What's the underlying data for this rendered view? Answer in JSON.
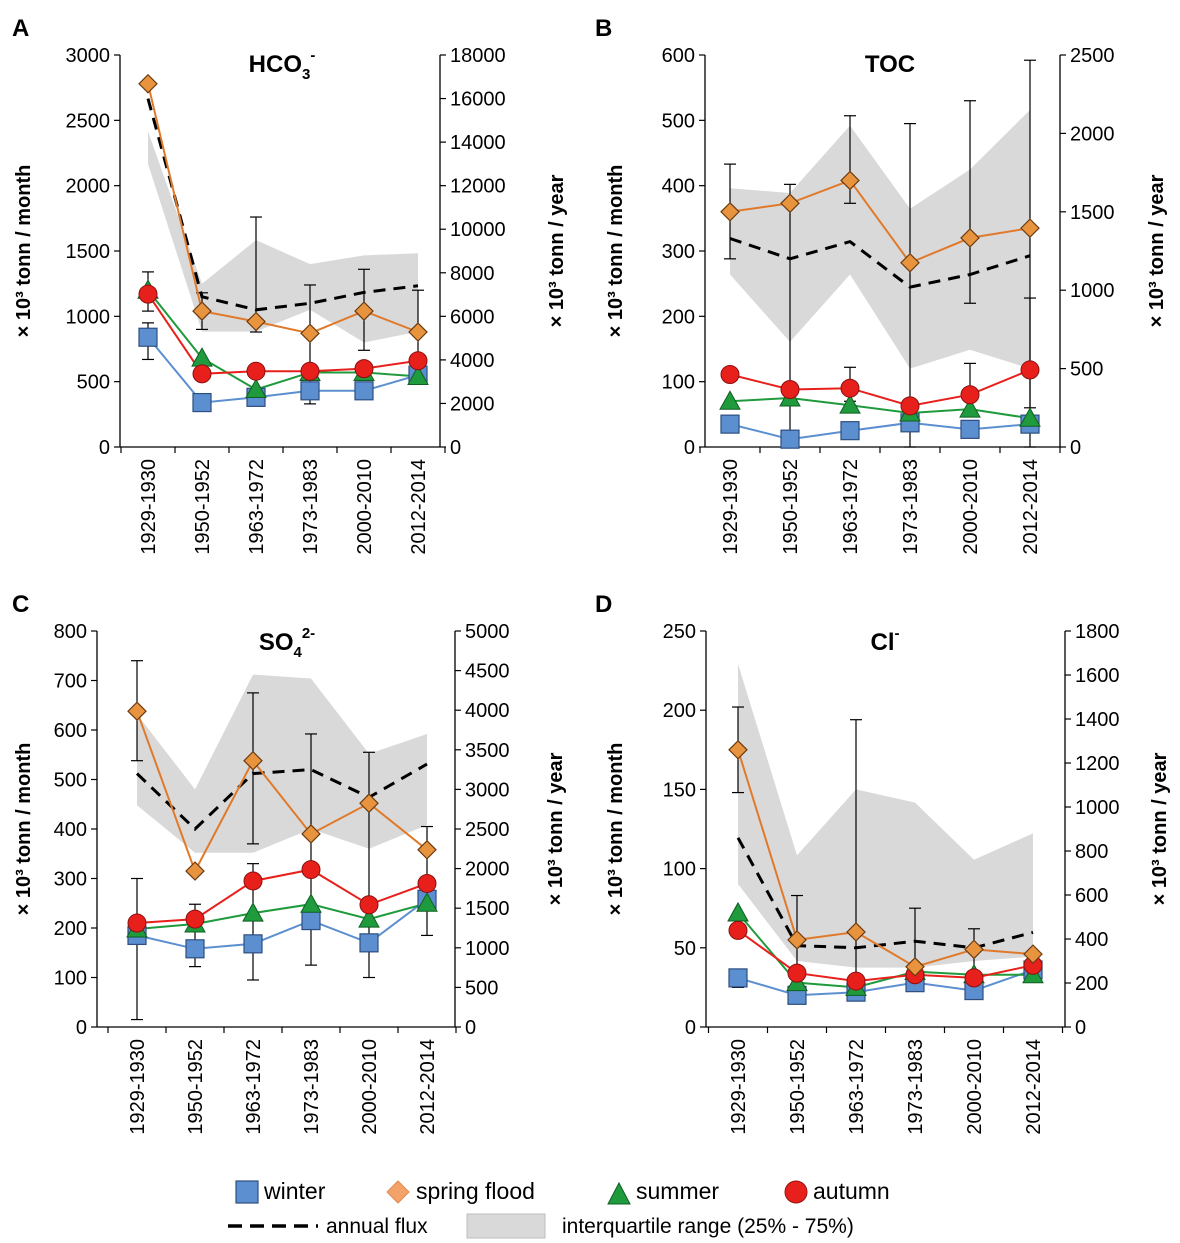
{
  "legend": {
    "winter": "winter",
    "spring": "spring flood",
    "summer": "summer",
    "autumn": "autumn",
    "annual": "annual flux",
    "iqr": "interquartile range (25% - 75%)"
  },
  "colors": {
    "winter": "#5b8fd0",
    "spring": "#e07a2a",
    "spring_marker": "#e8943f",
    "summer": "#1f9a3c",
    "autumn": "#e8201c",
    "annual": "#000000",
    "iqr": "#d9d9d9"
  },
  "chart_data": [
    {
      "type": "line",
      "panel": "A",
      "title_main": "HCO",
      "title_sub": "3",
      "title_sup": "-",
      "ylabel_left": "× 10³ tonn / month",
      "ylabel_right": "× 10³ tonn / year",
      "categories": [
        "1929-1930",
        "1950-1952",
        "1963-1972",
        "1973-1983",
        "2000-2010",
        "2012-2014"
      ],
      "yleft": {
        "min": 0,
        "max": 3000,
        "ticks": [
          0,
          500,
          1000,
          1500,
          2000,
          2500,
          3000
        ]
      },
      "yright": {
        "min": 0,
        "max": 18000,
        "ticks": [
          0,
          2000,
          4000,
          6000,
          8000,
          10000,
          12000,
          14000,
          16000,
          18000
        ]
      },
      "series": {
        "winter": [
          840,
          340,
          380,
          430,
          430,
          550
        ],
        "spring": [
          2780,
          1040,
          960,
          870,
          1040,
          880
        ],
        "summer": [
          1200,
          680,
          440,
          570,
          570,
          540
        ],
        "autumn": [
          1170,
          560,
          580,
          580,
          600,
          660
        ],
        "annual": [
          16000,
          6900,
          6300,
          6600,
          7100,
          7400
        ]
      },
      "iqr": {
        "upper": [
          14500,
          7500,
          9500,
          8400,
          8800,
          8900
        ],
        "lower": [
          13000,
          5300,
          5300,
          6300,
          4800,
          5300
        ]
      },
      "error_bars": [
        {
          "series": "winter",
          "i": 0,
          "low": 670,
          "high": 950
        },
        {
          "series": "autumn",
          "i": 0,
          "low": 1040,
          "high": 1340
        },
        {
          "series": "spring",
          "i": 1,
          "low": 900,
          "high": 1180
        },
        {
          "series": "spring",
          "i": 2,
          "low": 880,
          "high": 1760
        },
        {
          "series": "winter",
          "i": 2,
          "low": 320,
          "high": 420
        },
        {
          "series": "spring",
          "i": 3,
          "low": 330,
          "high": 1240
        },
        {
          "series": "spring",
          "i": 4,
          "low": 740,
          "high": 1360
        },
        {
          "series": "spring",
          "i": 5,
          "low": 540,
          "high": 1200
        }
      ]
    },
    {
      "type": "line",
      "panel": "B",
      "title_main": "TOC",
      "title_sub": "",
      "title_sup": "",
      "ylabel_left": "× 10³ tonn / month",
      "ylabel_right": "× 10³ tonn / year",
      "categories": [
        "1929-1930",
        "1950-1952",
        "1963-1972",
        "1973-1983",
        "2000-2010",
        "2012-2014"
      ],
      "yleft": {
        "min": 0,
        "max": 600,
        "ticks": [
          0,
          100,
          200,
          300,
          400,
          500,
          600
        ]
      },
      "yright": {
        "min": 0,
        "max": 2500,
        "ticks": [
          0,
          500,
          1000,
          1500,
          2000,
          2500
        ]
      },
      "series": {
        "winter": [
          35,
          12,
          25,
          37,
          27,
          35
        ],
        "spring": [
          360,
          373,
          408,
          282,
          320,
          335
        ],
        "summer": [
          70,
          75,
          64,
          52,
          58,
          44
        ],
        "autumn": [
          111,
          88,
          90,
          63,
          80,
          118
        ],
        "annual": [
          1330,
          1200,
          1310,
          1020,
          1100,
          1220
        ]
      },
      "iqr": {
        "upper": [
          1650,
          1620,
          2050,
          1520,
          1770,
          2150
        ],
        "lower": [
          1100,
          670,
          1100,
          500,
          620,
          500
        ]
      },
      "error_bars": [
        {
          "series": "spring",
          "i": 0,
          "low": 288,
          "high": 433
        },
        {
          "series": "spring",
          "i": 1,
          "low": 0,
          "high": 402
        },
        {
          "series": "spring",
          "i": 2,
          "low": 373,
          "high": 507
        },
        {
          "series": "spring",
          "i": 3,
          "low": 0,
          "high": 495
        },
        {
          "series": "spring",
          "i": 4,
          "low": 220,
          "high": 530
        },
        {
          "series": "spring",
          "i": 5,
          "low": 0,
          "high": 592
        },
        {
          "series": "autumn",
          "i": 2,
          "low": 70,
          "high": 122
        },
        {
          "series": "autumn",
          "i": 4,
          "low": 50,
          "high": 128
        },
        {
          "series": "autumn",
          "i": 5,
          "low": 60,
          "high": 228
        }
      ]
    },
    {
      "type": "line",
      "panel": "C",
      "title_main": "SO",
      "title_sub": "4",
      "title_sup": "2-",
      "ylabel_left": "× 10³ tonn / month",
      "ylabel_right": "× 10³ tonn /  year",
      "categories": [
        "1929-1930",
        "1950-1952",
        "1963-1972",
        "1973-1983",
        "2000-2010",
        "2012-2014"
      ],
      "yleft": {
        "min": 0,
        "max": 800,
        "ticks": [
          0,
          100,
          200,
          300,
          400,
          500,
          600,
          700,
          800
        ]
      },
      "yright": {
        "min": 0,
        "max": 5000,
        "ticks": [
          0,
          500,
          1000,
          1500,
          2000,
          2500,
          3000,
          3500,
          4000,
          4500,
          5000
        ]
      },
      "series": {
        "winter": [
          185,
          158,
          168,
          215,
          170,
          258
        ],
        "spring": [
          638,
          315,
          538,
          390,
          452,
          358
        ],
        "summer": [
          198,
          208,
          230,
          248,
          218,
          250
        ],
        "autumn": [
          210,
          218,
          295,
          318,
          247,
          290
        ],
        "annual": [
          3200,
          2500,
          3200,
          3250,
          2900,
          3320
        ]
      },
      "iqr": {
        "upper": [
          3950,
          3000,
          4450,
          4400,
          3450,
          3700
        ],
        "lower": [
          2800,
          2200,
          2200,
          2500,
          2250,
          2550
        ]
      },
      "error_bars": [
        {
          "series": "spring",
          "i": 0,
          "low": 538,
          "high": 740
        },
        {
          "series": "summer",
          "i": 0,
          "low": 15,
          "high": 300
        },
        {
          "series": "winter",
          "i": 1,
          "low": 122,
          "high": 248
        },
        {
          "series": "spring",
          "i": 2,
          "low": 370,
          "high": 675
        },
        {
          "series": "winter",
          "i": 2,
          "low": 95,
          "high": 330
        },
        {
          "series": "spring",
          "i": 3,
          "low": 125,
          "high": 592
        },
        {
          "series": "autumn",
          "i": 4,
          "low": 100,
          "high": 555
        },
        {
          "series": "autumn",
          "i": 5,
          "low": 185,
          "high": 405
        }
      ]
    },
    {
      "type": "line",
      "panel": "D",
      "title_main": "Cl",
      "title_sub": "",
      "title_sup": "-",
      "ylabel_left": "× 10³ tonn /  month",
      "ylabel_right": "× 10³ tonn /  year",
      "categories": [
        "1929-1930",
        "1950-1952",
        "1963-1972",
        "1973-1983",
        "2000-2010",
        "2012-2014"
      ],
      "yleft": {
        "min": 0,
        "max": 250,
        "ticks": [
          0,
          50,
          100,
          150,
          200,
          250
        ]
      },
      "yright": {
        "min": 0,
        "max": 1800,
        "ticks": [
          0,
          200,
          400,
          600,
          800,
          1000,
          1200,
          1400,
          1600,
          1800
        ]
      },
      "series": {
        "winter": [
          31,
          20,
          22,
          28,
          23,
          36
        ],
        "spring": [
          175,
          55,
          60,
          38,
          49,
          46
        ],
        "summer": [
          72,
          28,
          25,
          35,
          33,
          33
        ],
        "autumn": [
          61,
          34,
          29,
          33,
          31,
          39
        ],
        "annual": [
          860,
          370,
          360,
          390,
          360,
          430
        ]
      },
      "iqr": {
        "upper": [
          1650,
          780,
          1080,
          1020,
          760,
          880
        ],
        "lower": [
          650,
          300,
          270,
          270,
          300,
          320
        ]
      },
      "error_bars": [
        {
          "series": "spring",
          "i": 0,
          "low": 148,
          "high": 202
        },
        {
          "series": "winter",
          "i": 0,
          "low": 25,
          "high": 36
        },
        {
          "series": "spring",
          "i": 1,
          "low": 22,
          "high": 83
        },
        {
          "series": "spring",
          "i": 2,
          "low": 22,
          "high": 194
        },
        {
          "series": "spring",
          "i": 3,
          "low": 27,
          "high": 75
        },
        {
          "series": "spring",
          "i": 4,
          "low": 35,
          "high": 62
        }
      ]
    }
  ]
}
